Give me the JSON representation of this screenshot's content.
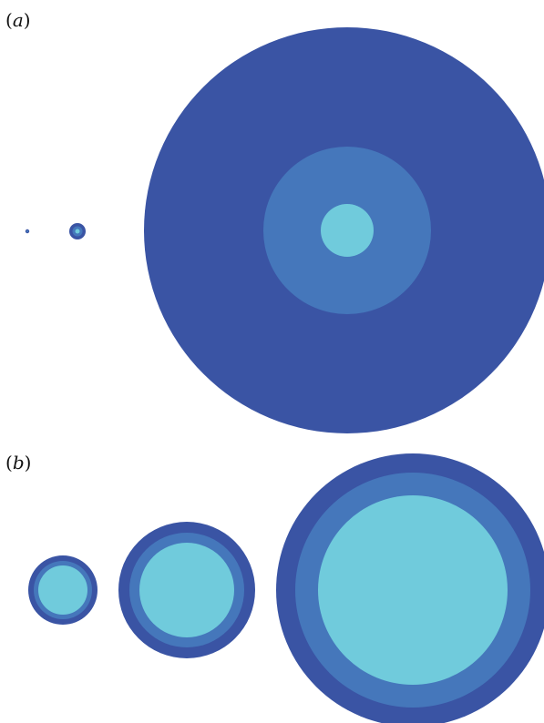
{
  "panels": [
    {
      "label_open": "(",
      "label_letter": "a",
      "label_close": ")"
    },
    {
      "label_open": "(",
      "label_letter": "b",
      "label_close": ")"
    }
  ],
  "colors": {
    "outer_ring": "#3a54a4",
    "middle_ring": "#4577bb",
    "inner_core": "#70cbdc",
    "background": "#ffffff"
  }
}
